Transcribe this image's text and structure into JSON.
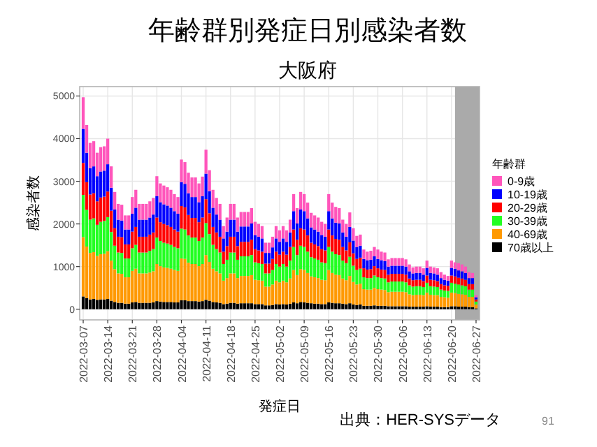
{
  "chart_data": {
    "type": "bar",
    "title": "年齢群別発症日別感染者数",
    "subtitle": "大阪府",
    "xlabel": "発症日",
    "ylabel": "感染者数",
    "legend_title": "年齢群",
    "stacked": true,
    "grid": true,
    "legend": "right",
    "annotations": [
      "出典：HER-SYSデータ",
      "91"
    ],
    "xlim": [
      "2022-03-06",
      "2022-06-28"
    ],
    "ylim": [
      -250,
      5220
    ],
    "xticks": [
      "2022-03-07",
      "2022-03-14",
      "2022-03-21",
      "2022-03-28",
      "2022-04-04",
      "2022-04-11",
      "2022-04-18",
      "2022-04-25",
      "2022-05-02",
      "2022-05-09",
      "2022-05-16",
      "2022-05-23",
      "2022-05-30",
      "2022-06-06",
      "2022-06-13",
      "2022-06-20",
      "2022-06-27"
    ],
    "yticks": [
      0,
      1000,
      2000,
      3000,
      4000,
      5000
    ],
    "bands": [
      {
        "axis": "x",
        "from": "2022-06-21",
        "to": "2022-06-28",
        "color": "#aaaaaa"
      }
    ],
    "x": [
      "2022-03-07",
      "2022-03-08",
      "2022-03-09",
      "2022-03-10",
      "2022-03-11",
      "2022-03-12",
      "2022-03-13",
      "2022-03-14",
      "2022-03-15",
      "2022-03-16",
      "2022-03-17",
      "2022-03-18",
      "2022-03-19",
      "2022-03-20",
      "2022-03-21",
      "2022-03-22",
      "2022-03-23",
      "2022-03-24",
      "2022-03-25",
      "2022-03-26",
      "2022-03-27",
      "2022-03-28",
      "2022-03-29",
      "2022-03-30",
      "2022-03-31",
      "2022-04-01",
      "2022-04-02",
      "2022-04-03",
      "2022-04-04",
      "2022-04-05",
      "2022-04-06",
      "2022-04-07",
      "2022-04-08",
      "2022-04-09",
      "2022-04-10",
      "2022-04-11",
      "2022-04-12",
      "2022-04-13",
      "2022-04-14",
      "2022-04-15",
      "2022-04-16",
      "2022-04-17",
      "2022-04-18",
      "2022-04-19",
      "2022-04-20",
      "2022-04-21",
      "2022-04-22",
      "2022-04-23",
      "2022-04-24",
      "2022-04-25",
      "2022-04-26",
      "2022-04-27",
      "2022-04-28",
      "2022-04-29",
      "2022-04-30",
      "2022-05-01",
      "2022-05-02",
      "2022-05-03",
      "2022-05-04",
      "2022-05-05",
      "2022-05-06",
      "2022-05-07",
      "2022-05-08",
      "2022-05-09",
      "2022-05-10",
      "2022-05-11",
      "2022-05-12",
      "2022-05-13",
      "2022-05-14",
      "2022-05-15",
      "2022-05-16",
      "2022-05-17",
      "2022-05-18",
      "2022-05-19",
      "2022-05-20",
      "2022-05-21",
      "2022-05-22",
      "2022-05-23",
      "2022-05-24",
      "2022-05-25",
      "2022-05-26",
      "2022-05-27",
      "2022-05-28",
      "2022-05-29",
      "2022-05-30",
      "2022-05-31",
      "2022-06-01",
      "2022-06-02",
      "2022-06-03",
      "2022-06-04",
      "2022-06-05",
      "2022-06-06",
      "2022-06-07",
      "2022-06-08",
      "2022-06-09",
      "2022-06-10",
      "2022-06-11",
      "2022-06-12",
      "2022-06-13",
      "2022-06-14",
      "2022-06-15",
      "2022-06-16",
      "2022-06-17",
      "2022-06-18",
      "2022-06-19",
      "2022-06-20",
      "2022-06-21",
      "2022-06-22",
      "2022-06-23",
      "2022-06-24",
      "2022-06-25",
      "2022-06-26",
      "2022-06-27"
    ],
    "series": [
      {
        "name": "70歳以上",
        "color": "#000000",
        "values": [
          300,
          260,
          230,
          240,
          220,
          230,
          230,
          240,
          200,
          170,
          150,
          150,
          130,
          130,
          160,
          170,
          150,
          150,
          150,
          150,
          160,
          190,
          180,
          170,
          170,
          170,
          160,
          160,
          210,
          210,
          190,
          190,
          190,
          180,
          190,
          220,
          200,
          170,
          160,
          150,
          120,
          130,
          150,
          150,
          130,
          140,
          140,
          140,
          140,
          120,
          120,
          120,
          90,
          90,
          100,
          120,
          110,
          120,
          110,
          130,
          160,
          140,
          170,
          160,
          150,
          140,
          130,
          130,
          120,
          120,
          160,
          150,
          140,
          140,
          130,
          120,
          140,
          110,
          100,
          110,
          80,
          80,
          80,
          90,
          80,
          80,
          80,
          70,
          70,
          70,
          70,
          70,
          70,
          60,
          60,
          60,
          60,
          60,
          70,
          60,
          60,
          60,
          50,
          50,
          50,
          70,
          70,
          60,
          60,
          60,
          50,
          50,
          20
        ]
      },
      {
        "name": "40-69歳",
        "color": "#ff9900",
        "values": [
          1390,
          1210,
          1090,
          1100,
          1030,
          1060,
          1070,
          1120,
          940,
          770,
          690,
          680,
          620,
          620,
          740,
          780,
          690,
          690,
          690,
          710,
          730,
          870,
          830,
          810,
          800,
          780,
          760,
          740,
          980,
          970,
          900,
          870,
          870,
          830,
          870,
          1050,
          910,
          780,
          730,
          690,
          550,
          600,
          690,
          690,
          600,
          640,
          640,
          640,
          660,
          570,
          560,
          550,
          440,
          440,
          480,
          550,
          520,
          550,
          520,
          590,
          760,
          660,
          770,
          760,
          700,
          630,
          620,
          600,
          570,
          560,
          760,
          700,
          670,
          660,
          590,
          560,
          640,
          530,
          480,
          490,
          390,
          380,
          380,
          410,
          390,
          380,
          370,
          330,
          340,
          340,
          340,
          340,
          330,
          290,
          270,
          280,
          280,
          270,
          320,
          280,
          270,
          270,
          240,
          230,
          220,
          320,
          310,
          300,
          290,
          280,
          240,
          240,
          90
        ]
      },
      {
        "name": "30-39歳",
        "color": "#22ff22",
        "values": [
          990,
          860,
          780,
          790,
          730,
          760,
          770,
          800,
          670,
          550,
          490,
          490,
          440,
          440,
          530,
          560,
          490,
          490,
          490,
          510,
          520,
          620,
          590,
          580,
          570,
          560,
          540,
          530,
          700,
          690,
          640,
          620,
          620,
          590,
          620,
          750,
          650,
          560,
          520,
          490,
          390,
          430,
          490,
          490,
          430,
          460,
          460,
          460,
          470,
          410,
          400,
          390,
          310,
          310,
          340,
          390,
          370,
          390,
          370,
          420,
          540,
          470,
          550,
          540,
          500,
          450,
          440,
          430,
          410,
          400,
          540,
          500,
          480,
          470,
          420,
          400,
          450,
          380,
          340,
          350,
          280,
          270,
          270,
          290,
          280,
          270,
          270,
          230,
          240,
          240,
          240,
          240,
          230,
          210,
          200,
          200,
          200,
          190,
          230,
          200,
          200,
          190,
          170,
          160,
          160,
          230,
          220,
          220,
          210,
          200,
          170,
          170,
          70
        ]
      },
      {
        "name": "20-29歳",
        "color": "#ff0000",
        "values": [
          750,
          650,
          590,
          590,
          550,
          570,
          570,
          600,
          500,
          410,
          370,
          370,
          330,
          330,
          390,
          420,
          370,
          370,
          370,
          380,
          390,
          470,
          440,
          440,
          430,
          420,
          410,
          390,
          530,
          520,
          480,
          460,
          460,
          440,
          470,
          560,
          490,
          420,
          390,
          370,
          290,
          320,
          370,
          370,
          320,
          340,
          340,
          340,
          360,
          310,
          300,
          290,
          230,
          230,
          260,
          290,
          280,
          290,
          280,
          320,
          410,
          360,
          410,
          410,
          380,
          340,
          330,
          320,
          310,
          300,
          410,
          380,
          360,
          360,
          320,
          300,
          340,
          290,
          260,
          260,
          210,
          200,
          210,
          220,
          210,
          200,
          200,
          180,
          180,
          180,
          180,
          180,
          180,
          160,
          150,
          150,
          150,
          140,
          170,
          150,
          150,
          140,
          130,
          120,
          120,
          170,
          170,
          160,
          160,
          150,
          130,
          130,
          50
        ]
      },
      {
        "name": "10-19歳",
        "color": "#0000ff",
        "values": [
          800,
          690,
          620,
          630,
          590,
          610,
          610,
          640,
          540,
          440,
          400,
          390,
          350,
          350,
          420,
          450,
          400,
          400,
          400,
          400,
          420,
          500,
          470,
          460,
          460,
          450,
          430,
          420,
          560,
          550,
          510,
          490,
          490,
          470,
          500,
          600,
          520,
          450,
          420,
          400,
          310,
          340,
          400,
          400,
          340,
          360,
          360,
          360,
          380,
          330,
          320,
          310,
          250,
          250,
          270,
          310,
          300,
          310,
          300,
          340,
          430,
          380,
          440,
          430,
          400,
          360,
          350,
          340,
          330,
          320,
          430,
          400,
          380,
          380,
          340,
          320,
          360,
          300,
          280,
          280,
          220,
          220,
          220,
          230,
          220,
          220,
          210,
          190,
          190,
          190,
          190,
          190,
          190,
          170,
          160,
          160,
          160,
          150,
          180,
          160,
          160,
          150,
          140,
          130,
          120,
          180,
          180,
          170,
          170,
          160,
          140,
          140,
          50
        ]
      },
      {
        "name": "0-9歳",
        "color": "#ff55bb",
        "values": [
          740,
          650,
          590,
          590,
          550,
          570,
          570,
          600,
          500,
          410,
          370,
          370,
          330,
          330,
          390,
          420,
          370,
          370,
          370,
          380,
          390,
          470,
          440,
          440,
          430,
          420,
          400,
          390,
          530,
          510,
          480,
          460,
          460,
          440,
          460,
          560,
          490,
          420,
          390,
          370,
          290,
          330,
          370,
          370,
          330,
          340,
          340,
          340,
          360,
          310,
          300,
          290,
          240,
          240,
          250,
          290,
          270,
          290,
          270,
          300,
          400,
          360,
          410,
          400,
          370,
          340,
          330,
          330,
          310,
          300,
          400,
          370,
          370,
          360,
          300,
          300,
          340,
          290,
          260,
          260,
          220,
          200,
          210,
          220,
          220,
          200,
          200,
          170,
          180,
          180,
          180,
          180,
          170,
          160,
          140,
          150,
          150,
          150,
          170,
          150,
          140,
          150,
          140,
          120,
          110,
          170,
          150,
          170,
          160,
          150,
          140,
          120,
          50
        ]
      }
    ]
  }
}
